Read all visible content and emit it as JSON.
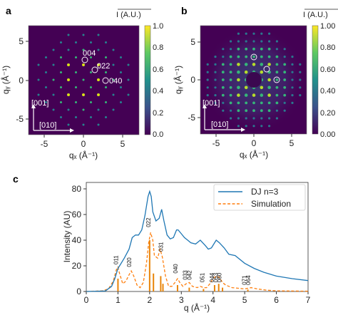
{
  "panels": {
    "a": {
      "letter": "a",
      "colorbar_label": "I (A.U.)",
      "colorbar_ticks": [
        "1.0",
        "0.8",
        "0.6",
        "0.4",
        "0.2",
        "0.0"
      ],
      "x_ticks": [
        "-5",
        "0",
        "5"
      ],
      "y_ticks": [
        "5",
        "0",
        "-5"
      ],
      "xlabel": "qₓ (Å⁻¹)",
      "ylabel": "qᵧ (Å⁻¹)",
      "direction_labels": {
        "vertical": "[001]",
        "horizontal": "[010]"
      },
      "reflections": [
        "004",
        "022",
        "040"
      ]
    },
    "b": {
      "letter": "b",
      "colorbar_label": "I (A.U.)",
      "colorbar_ticks": [
        "1.00",
        "0.80",
        "0.60",
        "0.40",
        "0.20",
        "0.00"
      ],
      "x_ticks": [
        "-5",
        "0",
        "5"
      ],
      "y_ticks": [
        "5",
        "0",
        "-5"
      ],
      "xlabel": "qₓ (Å⁻¹)",
      "ylabel": "qᵧ (Å⁻¹)",
      "direction_labels": {
        "vertical": "[001]",
        "horizontal": "[010]"
      }
    },
    "c": {
      "letter": "c"
    }
  },
  "colors": {
    "map_background": "#440154",
    "dj_line": "#1f77b4",
    "sim_line": "#ff7f0e",
    "sim_bars": "#e8850a"
  },
  "chart_data": {
    "type": "line",
    "title": "",
    "xlabel": "q (Å⁻¹)",
    "ylabel": "Intensity (AU)",
    "xlim": [
      0,
      7
    ],
    "ylim": [
      0,
      85
    ],
    "x_ticks": [
      0,
      1,
      2,
      3,
      4,
      5,
      6,
      7
    ],
    "y_ticks": [
      0,
      20,
      40,
      60,
      80
    ],
    "legend_position": "top-right",
    "series": [
      {
        "name": "DJ n=3",
        "style": "solid",
        "points": [
          [
            0.0,
            0.0
          ],
          [
            0.6,
            0.4
          ],
          [
            0.8,
            4
          ],
          [
            0.9,
            10
          ],
          [
            1.0,
            18
          ],
          [
            1.05,
            20
          ],
          [
            1.2,
            26
          ],
          [
            1.35,
            33
          ],
          [
            1.45,
            42
          ],
          [
            1.55,
            44
          ],
          [
            1.65,
            44
          ],
          [
            1.75,
            48
          ],
          [
            1.85,
            59
          ],
          [
            1.95,
            74
          ],
          [
            2.0,
            78
          ],
          [
            2.05,
            74
          ],
          [
            2.1,
            62
          ],
          [
            2.2,
            55
          ],
          [
            2.3,
            57
          ],
          [
            2.38,
            64
          ],
          [
            2.45,
            55
          ],
          [
            2.55,
            44
          ],
          [
            2.65,
            41
          ],
          [
            2.75,
            42
          ],
          [
            2.85,
            48
          ],
          [
            2.9,
            48
          ],
          [
            3.0,
            45
          ],
          [
            3.1,
            42
          ],
          [
            3.2,
            40
          ],
          [
            3.3,
            38
          ],
          [
            3.45,
            37
          ],
          [
            3.6,
            40
          ],
          [
            3.75,
            36
          ],
          [
            3.85,
            33
          ],
          [
            3.95,
            34
          ],
          [
            4.1,
            40
          ],
          [
            4.2,
            38
          ],
          [
            4.35,
            34
          ],
          [
            4.5,
            29
          ],
          [
            4.7,
            28
          ],
          [
            5.0,
            22
          ],
          [
            5.3,
            18
          ],
          [
            5.6,
            15
          ],
          [
            6.0,
            12
          ],
          [
            6.5,
            10
          ],
          [
            7.0,
            8.5
          ]
        ]
      },
      {
        "name": "Simulation",
        "style": "dashed",
        "points": [
          [
            0.0,
            0.0
          ],
          [
            0.5,
            0.5
          ],
          [
            0.7,
            2
          ],
          [
            0.85,
            8
          ],
          [
            0.95,
            17
          ],
          [
            1.0,
            19
          ],
          [
            1.05,
            14
          ],
          [
            1.15,
            6
          ],
          [
            1.25,
            8
          ],
          [
            1.35,
            13
          ],
          [
            1.42,
            16
          ],
          [
            1.5,
            12
          ],
          [
            1.6,
            5
          ],
          [
            1.7,
            3
          ],
          [
            1.8,
            7
          ],
          [
            1.9,
            22
          ],
          [
            1.97,
            38
          ],
          [
            2.03,
            46
          ],
          [
            2.1,
            40
          ],
          [
            2.15,
            28
          ],
          [
            2.25,
            26
          ],
          [
            2.33,
            33
          ],
          [
            2.4,
            27
          ],
          [
            2.5,
            12
          ],
          [
            2.6,
            4
          ],
          [
            2.7,
            4
          ],
          [
            2.8,
            7
          ],
          [
            2.88,
            10
          ],
          [
            2.95,
            7
          ],
          [
            3.05,
            4
          ],
          [
            3.15,
            6
          ],
          [
            3.25,
            7
          ],
          [
            3.35,
            4
          ],
          [
            3.5,
            3
          ],
          [
            3.6,
            4
          ],
          [
            3.7,
            3
          ],
          [
            3.8,
            3
          ],
          [
            3.9,
            6
          ],
          [
            4.0,
            10
          ],
          [
            4.1,
            12
          ],
          [
            4.2,
            11
          ],
          [
            4.3,
            7
          ],
          [
            4.4,
            5
          ],
          [
            4.6,
            3
          ],
          [
            4.8,
            2.5
          ],
          [
            5.0,
            2
          ],
          [
            5.2,
            3
          ],
          [
            5.4,
            2
          ],
          [
            5.7,
            1
          ],
          [
            6.0,
            0.5
          ],
          [
            7.0,
            0.2
          ]
        ]
      }
    ],
    "sticks": [
      {
        "q": 1.0,
        "height": 10
      },
      {
        "q": 2.0,
        "height": 40
      },
      {
        "q": 2.12,
        "height": 14
      },
      {
        "q": 2.35,
        "height": 12
      },
      {
        "q": 2.42,
        "height": 6
      },
      {
        "q": 2.88,
        "height": 5
      },
      {
        "q": 3.25,
        "height": 3
      },
      {
        "q": 3.7,
        "height": 2
      },
      {
        "q": 4.05,
        "height": 5
      },
      {
        "q": 4.18,
        "height": 6
      },
      {
        "q": 4.3,
        "height": 3
      },
      {
        "q": 5.1,
        "height": 1.5
      }
    ],
    "peak_labels": [
      {
        "text": "011",
        "q": 1.0,
        "y": 20
      },
      {
        "text": "020",
        "q": 1.42,
        "y": 18
      },
      {
        "text": "022",
        "q": 2.03,
        "y": 49
      },
      {
        "text": "031",
        "q": 2.42,
        "y": 30
      },
      {
        "text": "040",
        "q": 2.88,
        "y": 13
      },
      {
        "text": "033",
        "q": 3.18,
        "y": 8
      },
      {
        "text": "042",
        "q": 3.32,
        "y": 8
      },
      {
        "text": "051",
        "q": 3.72,
        "y": 6
      },
      {
        "text": "044",
        "q": 4.03,
        "y": 6
      },
      {
        "text": "053",
        "q": 4.15,
        "y": 6
      },
      {
        "text": "060",
        "q": 4.27,
        "y": 6
      },
      {
        "text": "071",
        "q": 5.05,
        "y": 4
      },
      {
        "text": "064",
        "q": 5.18,
        "y": 4
      }
    ]
  }
}
